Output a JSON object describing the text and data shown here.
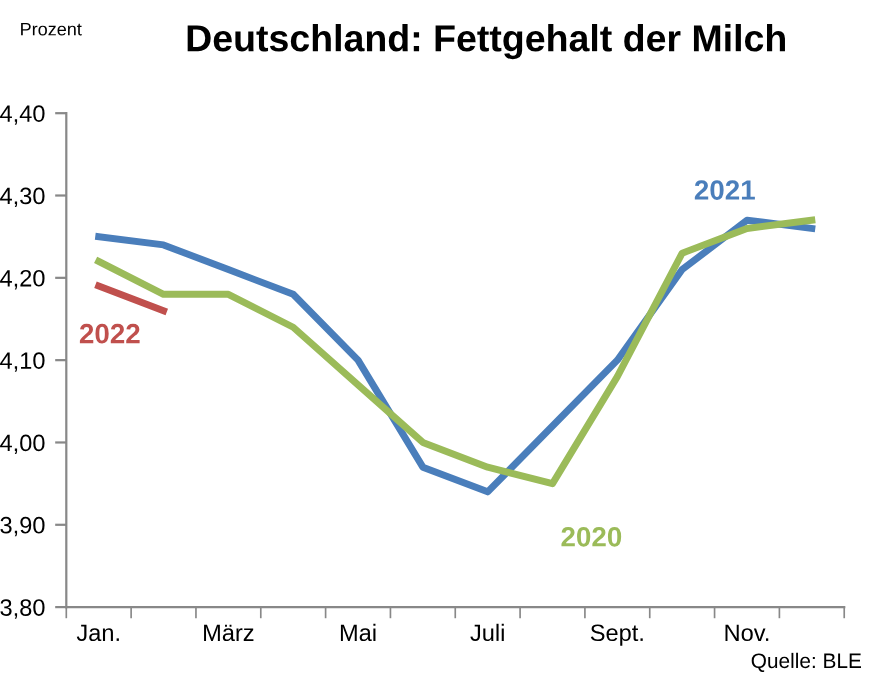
{
  "chart_data": {
    "type": "line",
    "title": "Deutschland: Fettgehalt der Milch",
    "ylabel": "Prozent",
    "categories": [
      "Jan.",
      null,
      "März",
      null,
      "Mai",
      null,
      "Juli",
      null,
      "Sept.",
      null,
      "Nov.",
      null
    ],
    "series": [
      {
        "name": "2022",
        "color": "#c0504d",
        "values": [
          4.19,
          4.16,
          null,
          null,
          null,
          null,
          null,
          null,
          null,
          null,
          null,
          null
        ]
      },
      {
        "name": "2021",
        "color": "#4a7ebb",
        "values": [
          4.25,
          4.24,
          4.21,
          4.18,
          4.1,
          3.97,
          3.94,
          4.02,
          4.1,
          4.21,
          4.27,
          4.26
        ]
      },
      {
        "name": "2020",
        "color": "#9bbb59",
        "values": [
          4.22,
          4.18,
          4.18,
          4.14,
          4.07,
          4.0,
          3.97,
          3.95,
          4.08,
          4.23,
          4.26,
          4.27
        ]
      }
    ],
    "ylim": [
      3.8,
      4.4
    ],
    "yticks": [
      {
        "value": 3.8,
        "label": "3,80"
      },
      {
        "value": 3.9,
        "label": "3,90"
      },
      {
        "value": 4.0,
        "label": "4,00"
      },
      {
        "value": 4.1,
        "label": "4,10"
      },
      {
        "value": 4.2,
        "label": "4,20"
      },
      {
        "value": 4.3,
        "label": "4,30"
      },
      {
        "value": 4.4,
        "label": "4,40"
      }
    ],
    "grid": false,
    "legend": false,
    "marker": "none",
    "line_style": "solid",
    "annotations": [
      "Quelle: BLE"
    ]
  }
}
